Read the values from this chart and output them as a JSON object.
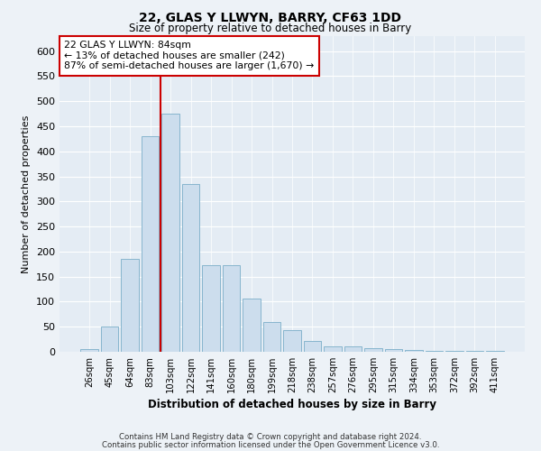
{
  "title1": "22, GLAS Y LLWYN, BARRY, CF63 1DD",
  "title2": "Size of property relative to detached houses in Barry",
  "xlabel": "Distribution of detached houses by size in Barry",
  "ylabel": "Number of detached properties",
  "categories": [
    "26sqm",
    "45sqm",
    "64sqm",
    "83sqm",
    "103sqm",
    "122sqm",
    "141sqm",
    "160sqm",
    "180sqm",
    "199sqm",
    "218sqm",
    "238sqm",
    "257sqm",
    "276sqm",
    "295sqm",
    "315sqm",
    "334sqm",
    "353sqm",
    "372sqm",
    "392sqm",
    "411sqm"
  ],
  "values": [
    5,
    50,
    185,
    430,
    475,
    335,
    172,
    172,
    107,
    60,
    43,
    22,
    10,
    10,
    8,
    6,
    3,
    2,
    2,
    2,
    2
  ],
  "bar_color": "#ccdded",
  "bar_edge_color": "#7aaec8",
  "property_line_index": 3,
  "property_line_color": "#cc0000",
  "annotation_text": "22 GLAS Y LLWYN: 84sqm\n← 13% of detached houses are smaller (242)\n87% of semi-detached houses are larger (1,670) →",
  "annotation_box_facecolor": "#ffffff",
  "annotation_box_edgecolor": "#cc0000",
  "ylim": [
    0,
    630
  ],
  "yticks": [
    0,
    50,
    100,
    150,
    200,
    250,
    300,
    350,
    400,
    450,
    500,
    550,
    600
  ],
  "footer1": "Contains HM Land Registry data © Crown copyright and database right 2024.",
  "footer2": "Contains public sector information licensed under the Open Government Licence v3.0.",
  "bg_color": "#edf2f7",
  "plot_bg_color": "#e4ecf4"
}
